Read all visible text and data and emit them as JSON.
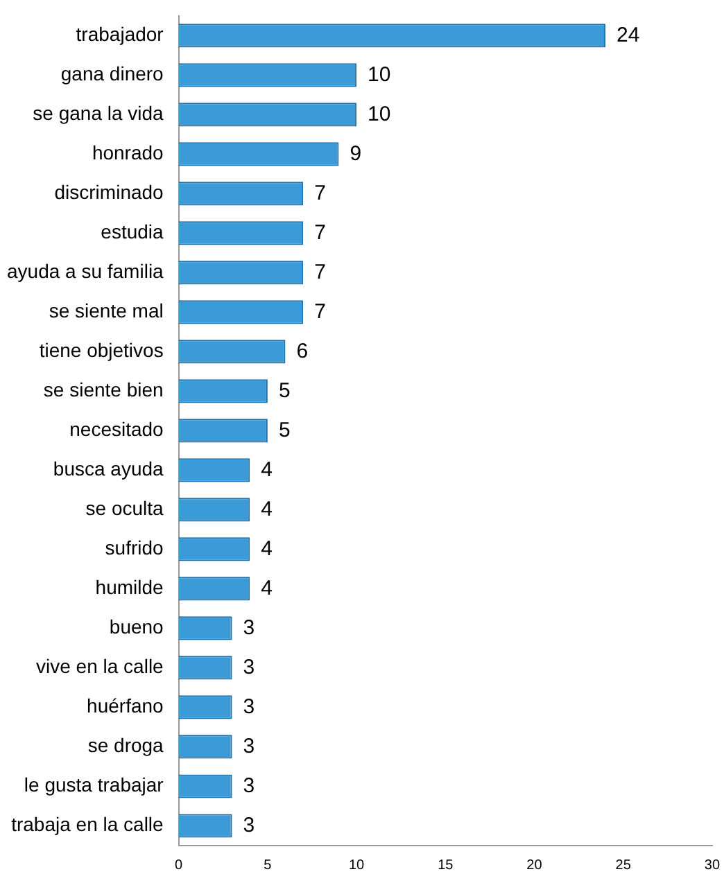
{
  "chart_data": {
    "type": "bar",
    "orientation": "horizontal",
    "categories": [
      "trabajador",
      "gana dinero",
      "se gana la vida",
      "honrado",
      "discriminado",
      "estudia",
      "ayuda a su familia",
      "se siente mal",
      "tiene objetivos",
      "se siente bien",
      "necesitado",
      "busca ayuda",
      "se oculta",
      "sufrido",
      "humilde",
      "bueno",
      "vive en la calle",
      "huérfano",
      "se droga",
      "le gusta trabajar",
      "trabaja en la calle"
    ],
    "values": [
      24,
      10,
      10,
      9,
      7,
      7,
      7,
      7,
      6,
      5,
      5,
      4,
      4,
      4,
      4,
      3,
      3,
      3,
      3,
      3,
      3
    ],
    "color": "#3b9ad8",
    "xlim": [
      0,
      30
    ],
    "xticks": [
      0,
      5,
      10,
      15,
      20,
      25,
      30
    ],
    "grid": false,
    "data_labels": true
  }
}
